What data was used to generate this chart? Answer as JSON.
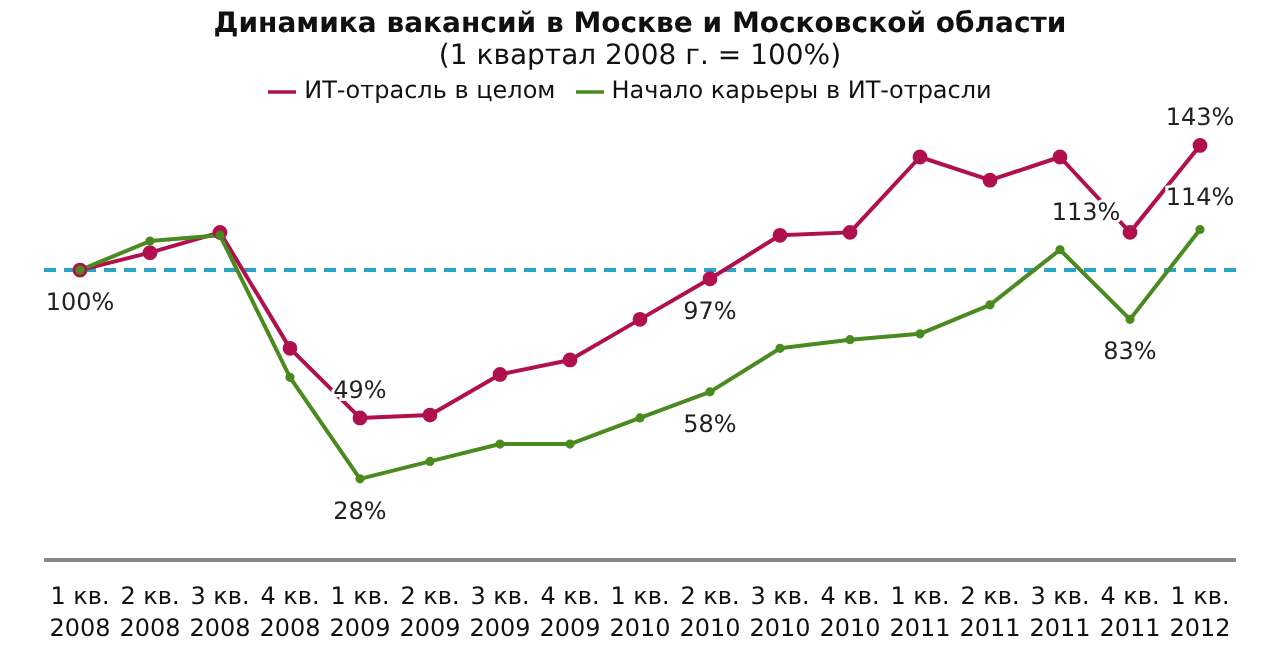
{
  "chart_data": {
    "type": "line",
    "title": "Динамика вакансий в Москве и Московской области",
    "subtitle": "(1 квартал 2008 г. = 100%)",
    "categories": [
      "1 кв. 2008",
      "2 кв. 2008",
      "3 кв. 2008",
      "4 кв. 2008",
      "1 кв. 2009",
      "2 кв. 2009",
      "3 кв. 2009",
      "4 кв. 2009",
      "1 кв. 2010",
      "2 кв. 2010",
      "3 кв. 2010",
      "4 кв. 2010",
      "1 кв. 2011",
      "2 кв. 2011",
      "3 кв. 2011",
      "4 кв. 2011",
      "1 кв. 2012"
    ],
    "series": [
      {
        "name": "ИТ-отрасль в целом",
        "color": "#b0104e",
        "values": [
          100,
          106,
          113,
          73,
          49,
          50,
          64,
          69,
          83,
          97,
          112,
          113,
          139,
          131,
          139,
          113,
          143
        ],
        "value_labels": [
          "100%",
          null,
          null,
          null,
          "49%",
          null,
          null,
          null,
          null,
          "97%",
          null,
          null,
          null,
          null,
          null,
          "113%",
          "143%"
        ]
      },
      {
        "name": "Начало карьеры в ИТ-отрасли",
        "color": "#4a8a1e",
        "values": [
          100,
          110,
          112,
          63,
          28,
          34,
          40,
          40,
          49,
          58,
          73,
          76,
          78,
          88,
          107,
          83,
          114
        ],
        "value_labels": [
          null,
          null,
          null,
          null,
          "28%",
          null,
          null,
          null,
          null,
          "58%",
          null,
          null,
          null,
          null,
          null,
          "83%",
          "114%"
        ]
      }
    ],
    "ref_lines": [
      {
        "axis": "y",
        "value": 100,
        "color": "#2aa5c6",
        "line_style": "dashed"
      }
    ],
    "legend": "top",
    "marker": "circle",
    "line_style": "solid",
    "grid": false
  }
}
